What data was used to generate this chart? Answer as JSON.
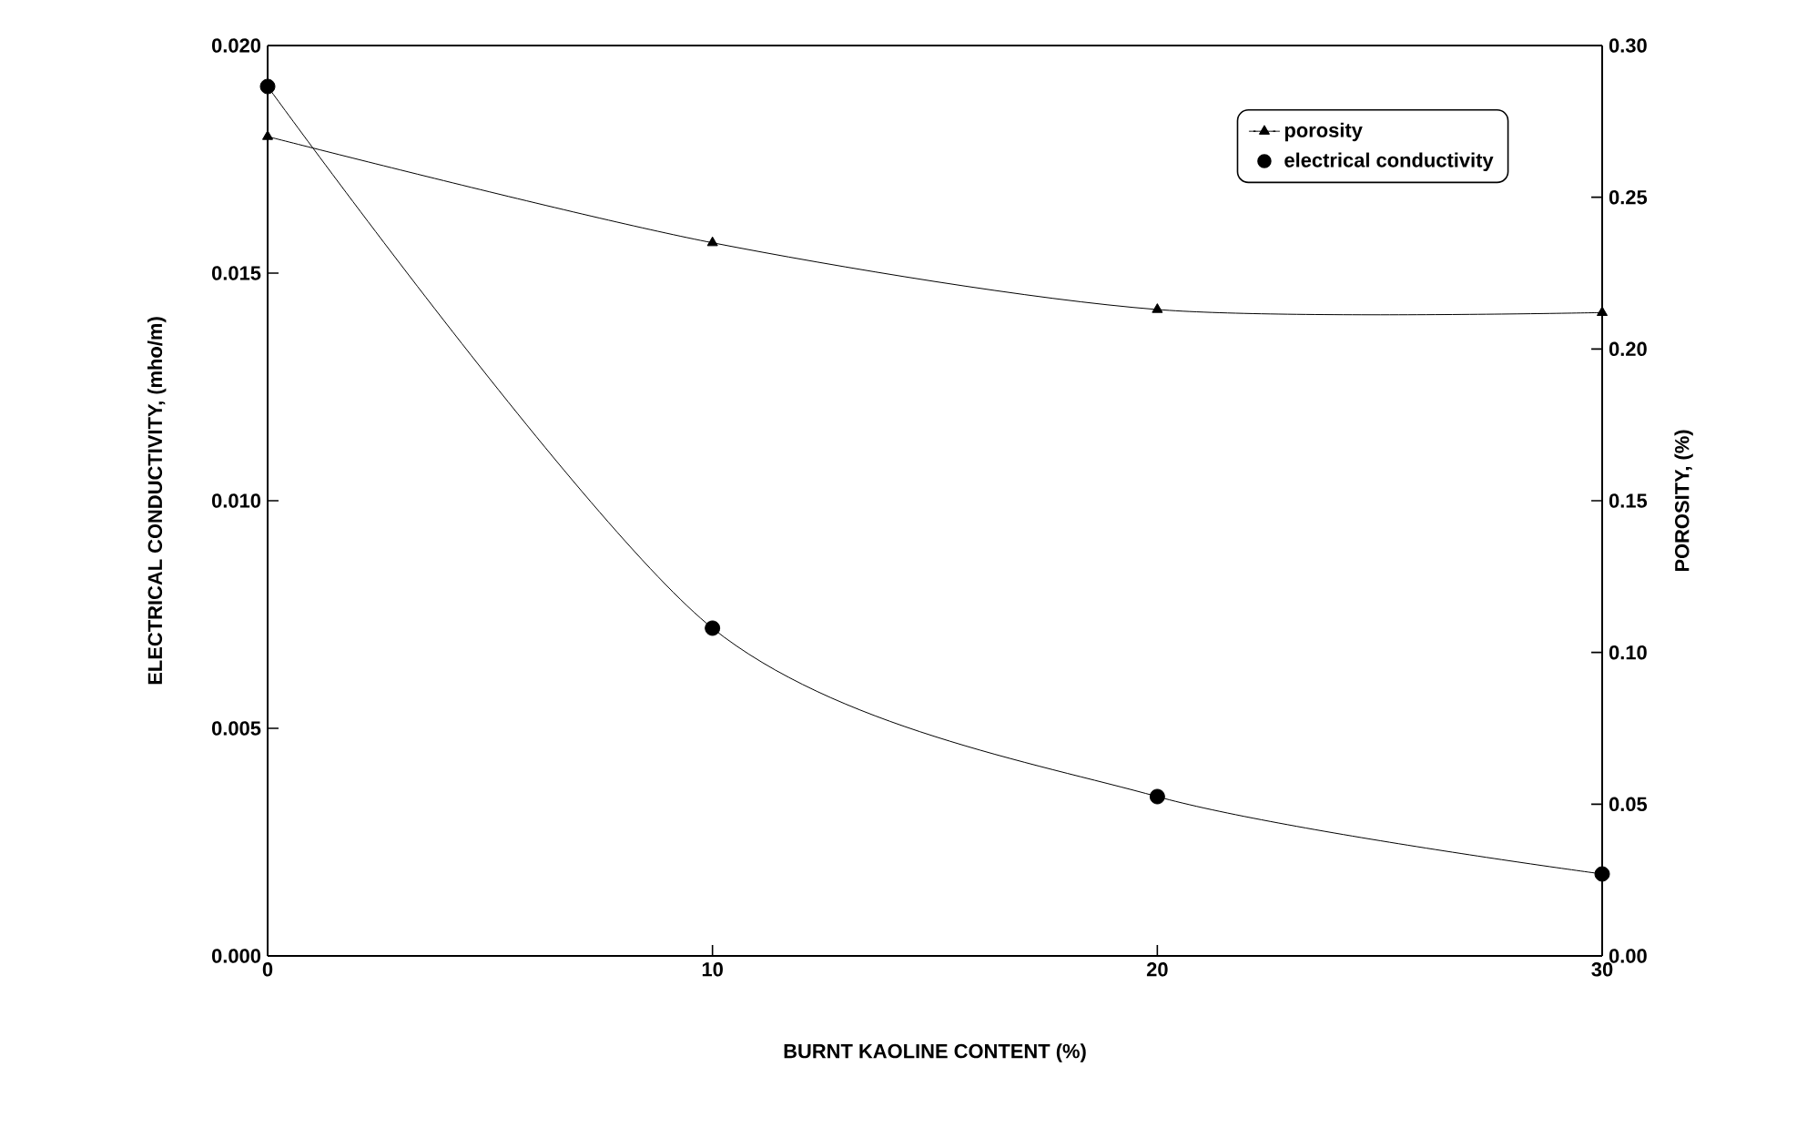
{
  "chart_data": {
    "type": "line",
    "xlabel": "BURNT KAOLINE CONTENT (%)",
    "ylabel": "ELECTRICAL CONDUCTIVITY, (mho/m)",
    "y2label": "POROSITY, (%)",
    "x": [
      0,
      10,
      20,
      30
    ],
    "series": [
      {
        "name": "porosity",
        "color": "#000000",
        "marker": "triangle",
        "axis": "y2",
        "values": [
          0.27,
          0.235,
          0.213,
          0.212
        ]
      },
      {
        "name": "electrical conductivity",
        "color": "#000000",
        "marker": "circle",
        "values": [
          0.0191,
          0.0072,
          0.0035,
          0.0018
        ]
      }
    ],
    "xlim": [
      0,
      30
    ],
    "xticks": [
      0,
      10,
      20,
      30
    ],
    "ylim": [
      0,
      0.02
    ],
    "yticks": [
      {
        "value": 0,
        "label": "0.000"
      },
      {
        "value": 0.005,
        "label": "0.005"
      },
      {
        "value": 0.01,
        "label": "0.010"
      },
      {
        "value": 0.015,
        "label": "0.015"
      },
      {
        "value": 0.02,
        "label": "0.020"
      }
    ],
    "y2lim": [
      0,
      0.3
    ],
    "y2ticks": [
      {
        "value": 0,
        "label": "0.00"
      },
      {
        "value": 0.05,
        "label": "0.05"
      },
      {
        "value": 0.1,
        "label": "0.10"
      },
      {
        "value": 0.15,
        "label": "0.15"
      },
      {
        "value": 0.2,
        "label": "0.20"
      },
      {
        "value": 0.25,
        "label": "0.25"
      },
      {
        "value": 0.3,
        "label": "0.30"
      }
    ],
    "legend": "top right",
    "grid": false,
    "line_style": "solid"
  }
}
